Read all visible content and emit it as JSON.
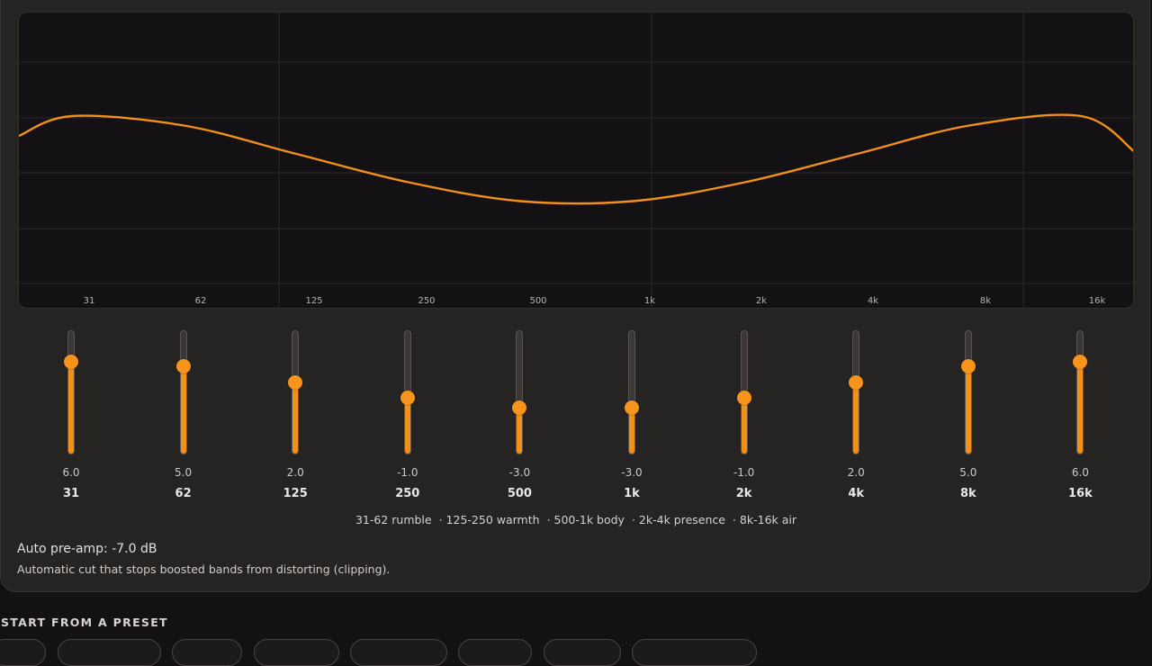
{
  "equalizer": {
    "freq_axis": [
      "31",
      "62",
      "125",
      "250",
      "500",
      "1k",
      "2k",
      "4k",
      "8k",
      "16k"
    ],
    "bands": [
      {
        "freq": "31",
        "gain": 6.0,
        "gain_label": "6.0"
      },
      {
        "freq": "62",
        "gain": 5.0,
        "gain_label": "5.0"
      },
      {
        "freq": "125",
        "gain": 2.0,
        "gain_label": "2.0"
      },
      {
        "freq": "250",
        "gain": -1.0,
        "gain_label": "-1.0"
      },
      {
        "freq": "500",
        "gain": -3.0,
        "gain_label": "-3.0"
      },
      {
        "freq": "1k",
        "gain": -3.0,
        "gain_label": "-3.0"
      },
      {
        "freq": "2k",
        "gain": -1.0,
        "gain_label": "-1.0"
      },
      {
        "freq": "4k",
        "gain": 2.0,
        "gain_label": "2.0"
      },
      {
        "freq": "8k",
        "gain": 5.0,
        "gain_label": "5.0"
      },
      {
        "freq": "16k",
        "gain": 6.0,
        "gain_label": "6.0"
      }
    ],
    "gain_range": [
      -12,
      12
    ],
    "legend": [
      "31-62 rumble",
      "· 125-250 warmth",
      "· 500-1k body",
      "· 2k-4k presence",
      "· 8k-16k air"
    ]
  },
  "preamp": {
    "title": "Auto pre-amp: -7.0 dB",
    "description": "Automatic cut that stops boosted bands from distorting (clipping)."
  },
  "presets": {
    "heading": "START FROM A PRESET"
  },
  "colors": {
    "accent": "#f39019",
    "panel": "#262323",
    "background": "#141114"
  }
}
